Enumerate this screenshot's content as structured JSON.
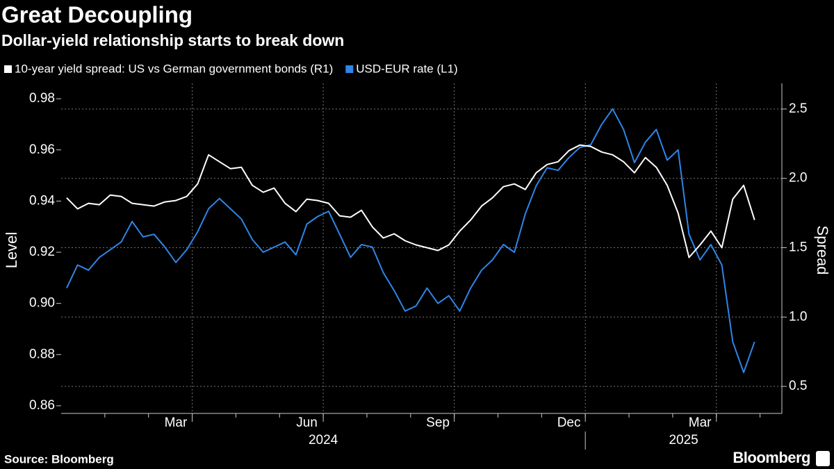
{
  "chart_data": {
    "type": "line",
    "title": "Great Decoupling",
    "subtitle": "Dollar-yield relationship starts to break down",
    "y_label": "Level",
    "y2_label": "Spread",
    "source": "Source: Bloomberg",
    "logo": "Bloomberg",
    "categories": [
      null,
      null,
      null,
      null,
      null,
      null,
      null,
      null,
      null,
      null,
      "Mar",
      null,
      null,
      null,
      null,
      null,
      null,
      null,
      null,
      null,
      null,
      null,
      "Jun",
      null,
      null,
      null,
      null,
      null,
      null,
      null,
      null,
      null,
      null,
      null,
      "Sep",
      null,
      null,
      null,
      null,
      null,
      null,
      null,
      null,
      null,
      null,
      null,
      "Dec",
      null,
      null,
      null,
      null,
      null,
      null,
      null,
      null,
      null,
      null,
      null,
      "Mar",
      null,
      null,
      null,
      null,
      null,
      null,
      null
    ],
    "category_years": [
      "2024",
      "2024",
      "2024",
      "2024",
      "2024",
      "2024",
      "2024",
      "2024",
      "2024",
      "2024",
      "2024",
      "2024",
      "2024",
      "2024",
      "2024",
      "2024",
      "2024",
      "2024",
      "2024",
      "2024",
      "2024",
      "2024",
      "2024",
      "2024",
      "2024",
      "2024",
      "2024",
      "2024",
      "2024",
      "2024",
      "2024",
      "2024",
      "2024",
      "2024",
      "2024",
      "2024",
      "2024",
      "2024",
      "2024",
      "2024",
      "2024",
      "2024",
      "2024",
      "2024",
      "2024",
      "2024",
      "2024",
      "2024",
      "2025",
      "2025",
      "2025",
      "2025",
      "2025",
      "2025",
      "2025",
      "2025",
      "2025",
      "2025",
      "2025",
      "2025",
      "2025",
      "2025",
      "2025",
      "2025",
      "2025",
      "2025"
    ],
    "series": [
      {
        "name": "10-year yield spread: US vs German government bonds (R1)",
        "color": "#ffffff",
        "axis": "y2",
        "values": [
          1.86,
          1.78,
          1.82,
          1.81,
          1.88,
          1.87,
          1.82,
          1.81,
          1.8,
          1.83,
          1.84,
          1.87,
          1.96,
          2.17,
          2.12,
          2.07,
          2.08,
          1.95,
          1.9,
          1.93,
          1.82,
          1.76,
          1.85,
          1.84,
          1.82,
          1.73,
          1.72,
          1.77,
          1.65,
          1.57,
          1.6,
          1.55,
          1.52,
          1.5,
          1.48,
          1.52,
          1.62,
          1.7,
          1.8,
          1.86,
          1.94,
          1.96,
          1.92,
          2.04,
          2.1,
          2.12,
          2.2,
          2.24,
          2.23,
          2.19,
          2.17,
          2.12,
          2.04,
          2.15,
          2.08,
          1.95,
          1.75,
          1.43,
          1.52,
          1.62,
          1.5,
          1.85,
          1.95,
          1.7,
          null,
          null
        ]
      },
      {
        "name": "USD-EUR rate (L1)",
        "color": "#2e86e8",
        "axis": "y",
        "values": [
          0.906,
          0.915,
          0.913,
          0.918,
          0.921,
          0.924,
          0.932,
          0.926,
          0.927,
          0.922,
          0.916,
          0.921,
          0.928,
          0.937,
          0.941,
          0.937,
          0.933,
          0.925,
          0.92,
          0.922,
          0.924,
          0.919,
          0.931,
          0.934,
          0.936,
          0.927,
          0.918,
          0.923,
          0.922,
          0.912,
          0.905,
          0.897,
          0.899,
          0.906,
          0.9,
          0.903,
          0.897,
          0.906,
          0.913,
          0.917,
          0.923,
          0.92,
          0.935,
          0.946,
          0.953,
          0.952,
          0.957,
          0.961,
          0.962,
          0.97,
          0.976,
          0.968,
          0.955,
          0.963,
          0.968,
          0.956,
          0.96,
          0.927,
          0.917,
          0.923,
          0.915,
          0.885,
          0.873,
          0.885,
          null,
          null
        ]
      }
    ],
    "ylim": [
      0.857,
      0.986
    ],
    "yticks": [
      0.86,
      0.88,
      {
        "value": 0.9,
        "label": "0.90"
      },
      0.92,
      0.94,
      0.96,
      0.98
    ],
    "y2lim": [
      0.305,
      2.685
    ],
    "y2ticks": [
      0.5,
      {
        "value": 1,
        "label": "1.0"
      },
      1.5,
      {
        "value": 2,
        "label": "2.0"
      },
      2.5
    ],
    "grid": true
  }
}
